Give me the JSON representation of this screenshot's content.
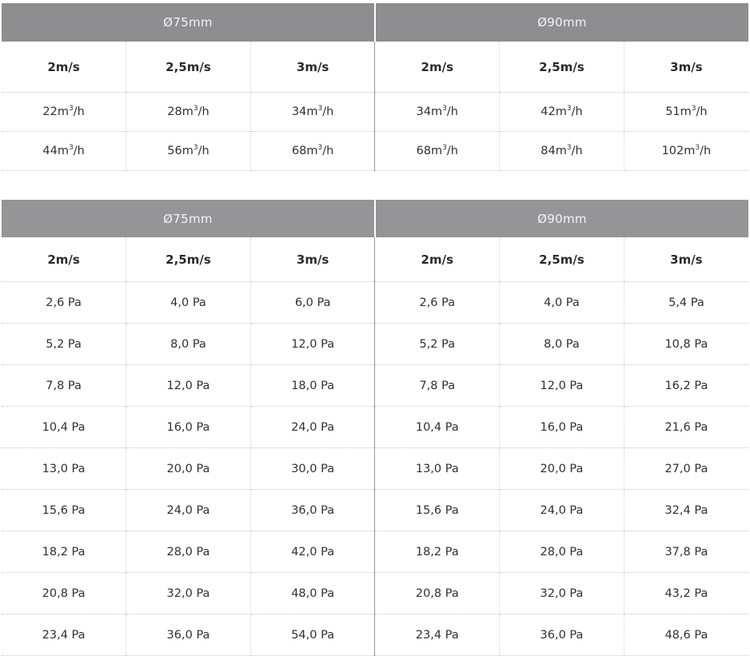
{
  "flow_table": {
    "groups": [
      "Ø75mm",
      "Ø90mm"
    ],
    "speeds": [
      "2m/s",
      "2,5m/s",
      "3m/s",
      "2m/s",
      "2,5m/s",
      "3m/s"
    ],
    "unit_prefix": "m",
    "unit_exponent": "3",
    "unit_suffix": "/h",
    "rows": [
      [
        "22",
        "28",
        "34",
        "34",
        "42",
        "51"
      ],
      [
        "44",
        "56",
        "68",
        "68",
        "84",
        "102"
      ]
    ]
  },
  "pressure_table": {
    "groups": [
      "Ø75mm",
      "Ø90mm"
    ],
    "speeds": [
      "2m/s",
      "2,5m/s",
      "3m/s",
      "2m/s",
      "2,5m/s",
      "3m/s"
    ],
    "rows": [
      [
        "2,6 Pa",
        "4,0 Pa",
        "6,0 Pa",
        "2,6 Pa",
        "4,0 Pa",
        "5,4 Pa"
      ],
      [
        "5,2 Pa",
        "8,0 Pa",
        "12,0 Pa",
        "5,2 Pa",
        "8,0 Pa",
        "10,8 Pa"
      ],
      [
        "7,8 Pa",
        "12,0 Pa",
        "18,0 Pa",
        "7,8 Pa",
        "12,0 Pa",
        "16,2 Pa"
      ],
      [
        "10,4 Pa",
        "16,0 Pa",
        "24,0 Pa",
        "10,4 Pa",
        "16,0 Pa",
        "21,6 Pa"
      ],
      [
        "13,0 Pa",
        "20,0 Pa",
        "30,0 Pa",
        "13,0 Pa",
        "20,0 Pa",
        "27,0 Pa"
      ],
      [
        "15,6 Pa",
        "24,0 Pa",
        "36,0 Pa",
        "15,6 Pa",
        "24,0 Pa",
        "32,4 Pa"
      ],
      [
        "18,2 Pa",
        "28,0 Pa",
        "42,0 Pa",
        "18,2 Pa",
        "28,0 Pa",
        "37,8 Pa"
      ],
      [
        "20,8 Pa",
        "32,0 Pa",
        "48,0 Pa",
        "20,8 Pa",
        "32,0 Pa",
        "43,2 Pa"
      ],
      [
        "23,4 Pa",
        "36,0 Pa",
        "54,0 Pa",
        "23,4 Pa",
        "36,0 Pa",
        "48,6 Pa"
      ]
    ]
  }
}
